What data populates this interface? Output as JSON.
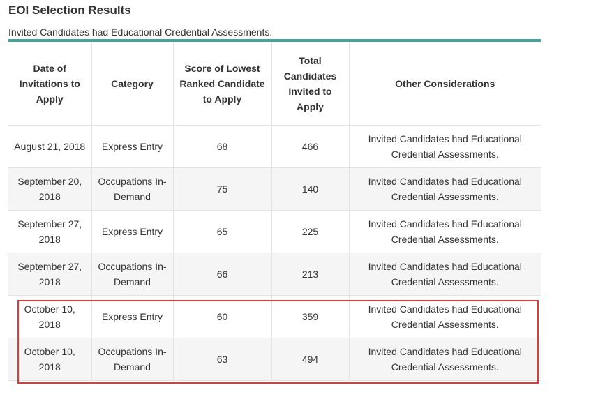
{
  "page": {
    "title": "EOI Selection Results",
    "subtitle": "Invited Candidates had Educational Credential Assessments."
  },
  "table": {
    "headers": [
      "Date of Invitations to Apply",
      "Category",
      "Score of Lowest Ranked Candidate to Apply",
      "Total Candidates Invited to Apply",
      "Other Considerations"
    ],
    "rows": [
      {
        "date": "August 21, 2018",
        "category": "Express Entry",
        "score": "68",
        "total": "466",
        "other": "Invited Candidates had Educational Credential Assessments."
      },
      {
        "date": "September 20, 2018",
        "category": "Occupations In-Demand",
        "score": "75",
        "total": "140",
        "other": "Invited Candidates had Educational Credential Assessments."
      },
      {
        "date": "September 27, 2018",
        "category": "Express Entry",
        "score": "65",
        "total": "225",
        "other": "Invited Candidates had Educational Credential Assessments."
      },
      {
        "date": "September 27, 2018",
        "category": "Occupations In-Demand",
        "score": "66",
        "total": "213",
        "other": "Invited Candidates had Educational Credential Assessments."
      },
      {
        "date": "October 10, 2018",
        "category": "Express Entry",
        "score": "60",
        "total": "359",
        "other": "Invited Candidates had Educational Credential Assessments."
      },
      {
        "date": "October 10, 2018",
        "category": "Occupations In-Demand",
        "score": "63",
        "total": "494",
        "other": "Invited Candidates had Educational Credential Assessments."
      }
    ]
  },
  "colors": {
    "accent": "#4aa39b",
    "highlight": "#e03a3a",
    "stripe": "#f5f5f5"
  }
}
